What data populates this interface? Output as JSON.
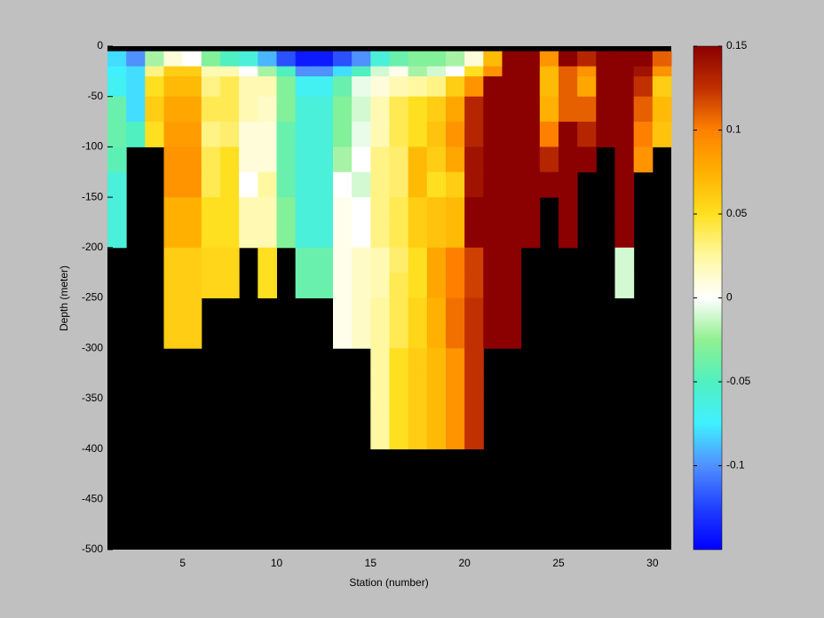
{
  "chart_data": {
    "type": "heatmap",
    "xlabel": "Station (number)",
    "ylabel": "Depth (meter)",
    "x": [
      1,
      2,
      3,
      4,
      5,
      6,
      7,
      8,
      9,
      10,
      11,
      12,
      13,
      14,
      15,
      16,
      17,
      18,
      19,
      20,
      21,
      22,
      23,
      24,
      25,
      26,
      27,
      28,
      29,
      30,
      31
    ],
    "y": [
      0,
      -5,
      -20,
      -30,
      -50,
      -75,
      -100,
      -125,
      -150,
      -175,
      -200,
      -225,
      -250,
      -275,
      -300,
      -325,
      -350,
      -375,
      -400
    ],
    "z": [
      [
        null,
        null,
        null,
        null,
        null,
        null,
        null,
        null,
        null,
        null,
        null,
        null,
        null,
        null,
        null,
        null,
        null,
        null,
        null,
        null,
        null,
        null,
        null,
        null,
        null,
        null,
        null,
        null,
        null,
        null
      ],
      [
        -0.08,
        -0.1,
        -0.02,
        0.01,
        0,
        -0.03,
        -0.05,
        -0.06,
        -0.09,
        -0.12,
        -0.14,
        -0.14,
        -0.12,
        -0.1,
        -0.06,
        -0.04,
        -0.03,
        -0.03,
        -0.02,
        0.01,
        0.07,
        0.15,
        0.15,
        0.09,
        0.15,
        0.13,
        0.15,
        0.15,
        0.15,
        0.11
      ],
      [
        -0.075,
        -0.08,
        0.03,
        0.06,
        0.06,
        0.02,
        0.02,
        0,
        -0.02,
        -0.05,
        -0.1,
        -0.1,
        -0.08,
        -0.05,
        -0.01,
        0.005,
        -0.02,
        -0.01,
        0,
        0.05,
        0.09,
        0.15,
        0.15,
        0.07,
        0.11,
        0.09,
        0.15,
        0.15,
        0.14,
        0.09
      ],
      [
        -0.07,
        -0.08,
        0.05,
        0.07,
        0.07,
        0.03,
        0.04,
        0.02,
        0.02,
        -0.03,
        -0.07,
        -0.07,
        -0.04,
        -0.005,
        0.01,
        0.02,
        0.025,
        0.03,
        0.06,
        0.09,
        0.15,
        0.15,
        0.15,
        0.07,
        0.11,
        0.08,
        0.15,
        0.15,
        0.125,
        0.06
      ],
      [
        -0.04,
        -0.08,
        0.06,
        0.08,
        0.08,
        0.04,
        0.04,
        0.02,
        0.015,
        -0.03,
        -0.06,
        -0.06,
        -0.03,
        -0.01,
        0.02,
        0.04,
        0.05,
        0.06,
        0.08,
        0.13,
        0.15,
        0.15,
        0.15,
        0.075,
        0.11,
        0.11,
        0.15,
        0.15,
        0.11,
        0.07
      ],
      [
        -0.04,
        -0.05,
        0.05,
        0.085,
        0.085,
        0.03,
        0.035,
        0.01,
        0.01,
        -0.04,
        -0.06,
        -0.06,
        -0.03,
        -0.005,
        0.02,
        0.04,
        0.05,
        0.065,
        0.09,
        0.13,
        0.15,
        0.15,
        0.15,
        0.1,
        0.15,
        0.13,
        0.15,
        0.15,
        0.1,
        0.065
      ],
      [
        -0.045,
        null,
        null,
        0.09,
        0.09,
        0.04,
        0.05,
        0.01,
        0.01,
        -0.04,
        -0.06,
        -0.06,
        -0.02,
        0,
        0.03,
        0.035,
        0.07,
        0.06,
        0.08,
        0.14,
        0.15,
        0.15,
        0.15,
        0.13,
        0.15,
        0.15,
        null,
        0.15,
        0.09,
        null
      ],
      [
        -0.06,
        null,
        null,
        0.09,
        0.09,
        0.04,
        0.05,
        0,
        0.025,
        -0.04,
        -0.06,
        -0.06,
        0,
        -0.01,
        0.03,
        0.035,
        0.07,
        0.05,
        0.06,
        0.14,
        0.15,
        0.15,
        0.15,
        0.15,
        0.15,
        null,
        null,
        0.15,
        null,
        null
      ],
      [
        -0.06,
        null,
        null,
        0.075,
        0.075,
        0.05,
        0.05,
        0.02,
        0.02,
        -0.03,
        -0.06,
        -0.06,
        0.005,
        0,
        0.03,
        0.04,
        0.06,
        0.065,
        0.07,
        0.15,
        0.15,
        0.15,
        0.15,
        null,
        0.15,
        null,
        null,
        0.15,
        null,
        null
      ],
      [
        -0.06,
        null,
        null,
        0.075,
        0.075,
        0.05,
        0.05,
        0.02,
        0.02,
        -0.03,
        -0.06,
        -0.06,
        0.005,
        0,
        0.03,
        0.04,
        0.06,
        0.065,
        0.07,
        0.15,
        0.15,
        0.15,
        0.15,
        null,
        0.15,
        null,
        null,
        0.15,
        null,
        null
      ],
      [
        null,
        null,
        null,
        0.06,
        0.06,
        0.055,
        0.055,
        null,
        0.05,
        null,
        -0.04,
        -0.04,
        0.005,
        0.015,
        0.02,
        0.035,
        0.05,
        0.08,
        0.1,
        0.12,
        0.15,
        0.15,
        null,
        null,
        null,
        null,
        null,
        -0.01,
        null,
        null
      ],
      [
        null,
        null,
        null,
        0.06,
        0.06,
        0.055,
        0.055,
        null,
        0.05,
        null,
        -0.04,
        -0.04,
        0.005,
        0.015,
        0.02,
        0.04,
        0.05,
        0.08,
        0.1,
        0.12,
        0.15,
        0.15,
        null,
        null,
        null,
        null,
        null,
        -0.01,
        null,
        null
      ],
      [
        null,
        null,
        null,
        0.06,
        0.06,
        null,
        null,
        null,
        null,
        null,
        null,
        null,
        0.005,
        0.015,
        0.025,
        0.04,
        0.055,
        0.075,
        0.105,
        0.125,
        0.15,
        0.15,
        null,
        null,
        null,
        null,
        null,
        null,
        null,
        null
      ],
      [
        null,
        null,
        null,
        0.06,
        0.06,
        null,
        null,
        null,
        null,
        null,
        null,
        null,
        0.005,
        0.015,
        0.025,
        0.04,
        0.055,
        0.075,
        0.105,
        0.125,
        0.15,
        0.15,
        null,
        null,
        null,
        null,
        null,
        null,
        null,
        null
      ],
      [
        null,
        null,
        null,
        null,
        null,
        null,
        null,
        null,
        null,
        null,
        null,
        null,
        null,
        null,
        0.025,
        0.05,
        0.06,
        0.07,
        0.09,
        0.125,
        null,
        null,
        null,
        null,
        null,
        null,
        null,
        null,
        null,
        null
      ],
      [
        null,
        null,
        null,
        null,
        null,
        null,
        null,
        null,
        null,
        null,
        null,
        null,
        null,
        null,
        0.025,
        0.05,
        0.06,
        0.07,
        0.09,
        0.125,
        null,
        null,
        null,
        null,
        null,
        null,
        null,
        null,
        null,
        null
      ],
      [
        null,
        null,
        null,
        null,
        null,
        null,
        null,
        null,
        null,
        null,
        null,
        null,
        null,
        null,
        0.025,
        0.05,
        0.06,
        0.07,
        0.09,
        0.125,
        null,
        null,
        null,
        null,
        null,
        null,
        null,
        null,
        null,
        null
      ],
      [
        null,
        null,
        null,
        null,
        null,
        null,
        null,
        null,
        null,
        null,
        null,
        null,
        null,
        null,
        0.025,
        0.05,
        0.06,
        0.07,
        0.09,
        0.125,
        null,
        null,
        null,
        null,
        null,
        null,
        null,
        null,
        null,
        null
      ]
    ],
    "xlim": [
      1,
      31
    ],
    "xticks": [
      5,
      10,
      15,
      20,
      25,
      30
    ],
    "ylim": [
      -500,
      0
    ],
    "yticks": [
      -500,
      -450,
      -400,
      -350,
      -300,
      -250,
      -200,
      -150,
      -100,
      -50,
      0
    ],
    "clim": [
      -0.15,
      0.15
    ],
    "cticks": [
      -0.1,
      -0.05,
      0,
      0.05,
      0.1,
      0.15
    ],
    "colormap": [
      "#0000ff",
      "#2040ff",
      "#5090ff",
      "#40f0ff",
      "#50f0c0",
      "#90f090",
      "#ffffff",
      "#fff8a0",
      "#ffe020",
      "#ffb000",
      "#ff8000",
      "#c03000",
      "#8b0000"
    ],
    "missing_color": "#000000"
  }
}
